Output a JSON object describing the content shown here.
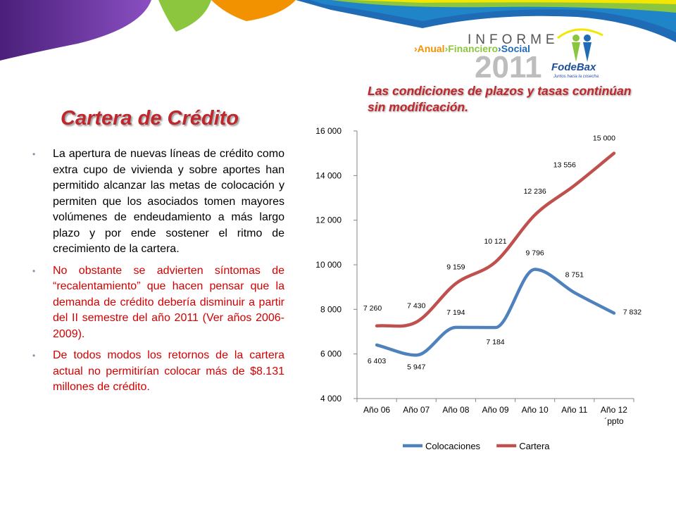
{
  "header": {
    "informe": "INFORME",
    "anual": "Anual",
    "financiero": "Financiero",
    "social": "Social",
    "year": "2011",
    "logo_name": "FodeBax",
    "logo_tagline": "Juntos hacia la cosecha",
    "colors": {
      "purple": "#5b2d8e",
      "green": "#7db93e",
      "orange": "#f39200",
      "blue": "#1f5fa8",
      "yellow": "#f3e600"
    }
  },
  "slide": {
    "title": "Cartera de Crédito",
    "subtitle": "Las condiciones de plazos y tasas continúan sin modificación.",
    "bullets": [
      {
        "text": "La apertura de nuevas líneas de crédito como extra cupo de vivienda y sobre aportes han permitido alcanzar las metas de colocación y permiten que los asociados tomen mayores volúmenes de endeudamiento a más largo plazo y por ende sostener el ritmo de crecimiento de la cartera.",
        "color": "#000000"
      },
      {
        "text": "No obstante se advierten síntomas de “recalentamiento” que hacen pensar que la demanda de crédito debería disminuir  a partir del II semestre del año 2011 (Ver años 2006-2009).",
        "color": "#d40000"
      },
      {
        "text": "De todos modos los retornos de la cartera actual no permitirían colocar más de $8.131 millones de crédito.",
        "color": "#d40000"
      }
    ]
  },
  "chart_data": {
    "type": "line",
    "categories": [
      "Año 06",
      "Año 07",
      "Año 08",
      "Año 09",
      "Año 10",
      "Año 11",
      "Año 12 ´ppto"
    ],
    "category_lines": [
      [
        "Año 06"
      ],
      [
        "Año 07"
      ],
      [
        "Año 08"
      ],
      [
        "Año 09"
      ],
      [
        "Año 10"
      ],
      [
        "Año 11"
      ],
      [
        "Año 12",
        "´ppto"
      ]
    ],
    "series": [
      {
        "name": "Colocaciones",
        "color": "#4f81bd",
        "values": [
          6403,
          5947,
          7194,
          7184,
          9796,
          8751,
          7832
        ],
        "labels": [
          "6 403",
          "5 947",
          "7 194",
          "7 184",
          "9 796",
          "8 751",
          "7 832"
        ]
      },
      {
        "name": "Cartera",
        "color": "#c0504d",
        "values": [
          7260,
          7430,
          9159,
          10121,
          12236,
          13556,
          15000
        ],
        "labels": [
          "7 260",
          "7 430",
          "9 159",
          "10 121",
          "12 236",
          "13 556",
          "15 000"
        ]
      }
    ],
    "ylim": [
      4000,
      16000
    ],
    "yticks": [
      4000,
      6000,
      8000,
      10000,
      12000,
      14000,
      16000
    ],
    "ytick_labels": [
      "4 000",
      "6 000",
      "8 000",
      "10 000",
      "12 000",
      "14 000",
      "16 000"
    ],
    "smooth": true,
    "grid": false,
    "legend_position": "bottom"
  }
}
